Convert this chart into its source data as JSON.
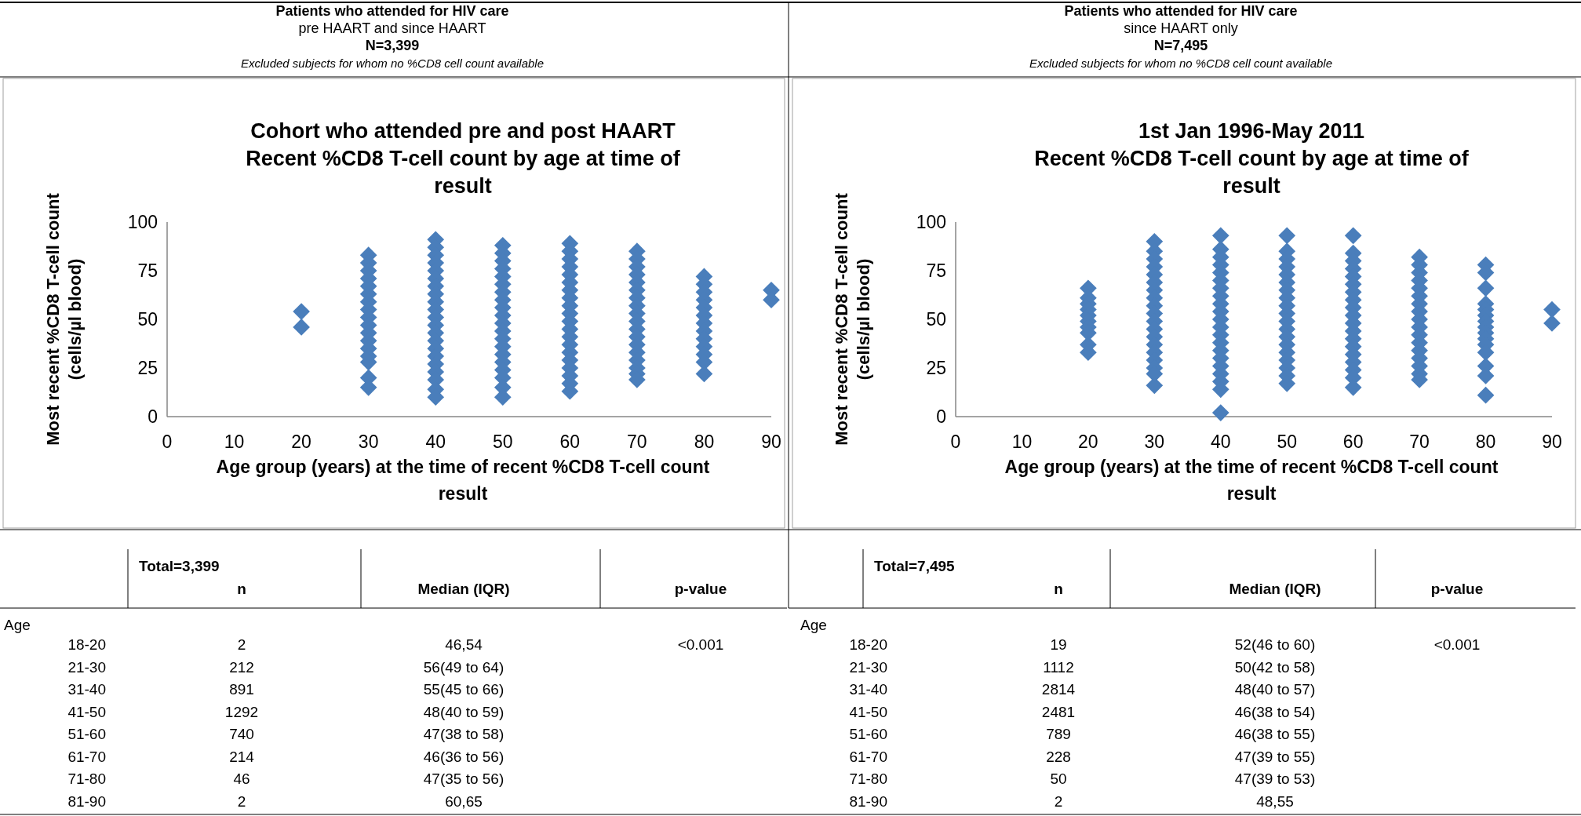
{
  "chart_data": [
    {
      "type": "scatter",
      "title": "Cohort who attended pre and post HAART",
      "subtitle": "Recent %CD8 T-cell count by age at time of result",
      "xlabel": "Age group (years) at the time of recent %CD8 T-cell count result",
      "ylabel": "Most recent %CD8 T-cell count (cells/µl blood)",
      "xlim": [
        0,
        90
      ],
      "xticks": [
        0,
        10,
        20,
        30,
        40,
        50,
        60,
        70,
        80,
        90
      ],
      "ylim": [
        0,
        100
      ],
      "yticks": [
        0,
        25,
        50,
        75,
        100
      ],
      "grid": false,
      "marker": "diamond",
      "annotations": [
        "Patients who attended for HIV care",
        "pre HAART and since HAART",
        "N=3,399",
        "Excluded subjects for whom no %CD8 cell count available"
      ],
      "series": [
        {
          "color": "#4a7ebb",
          "x": [
            20,
            20
          ],
          "values": [
            54,
            46
          ]
        },
        {
          "color": "#4a7ebb",
          "x": [
            30,
            30,
            30,
            30,
            30,
            30,
            30,
            30,
            30,
            30,
            30,
            30,
            30,
            30,
            30,
            30,
            30
          ],
          "values": [
            83,
            79,
            75,
            71,
            67,
            63,
            59,
            55,
            51,
            47,
            43,
            39,
            35,
            31,
            28,
            20,
            15
          ]
        },
        {
          "color": "#4a7ebb",
          "x": [
            40,
            40,
            40,
            40,
            40,
            40,
            40,
            40,
            40,
            40,
            40,
            40,
            40,
            40,
            40,
            40,
            40,
            40,
            40,
            40,
            40
          ],
          "values": [
            91,
            87,
            83,
            79,
            75,
            71,
            67,
            63,
            59,
            55,
            51,
            47,
            43,
            39,
            35,
            31,
            27,
            23,
            19,
            14,
            10
          ]
        },
        {
          "color": "#4a7ebb",
          "x": [
            50,
            50,
            50,
            50,
            50,
            50,
            50,
            50,
            50,
            50,
            50,
            50,
            50,
            50,
            50,
            50,
            50,
            50,
            50,
            50
          ],
          "values": [
            88,
            84,
            80,
            76,
            72,
            68,
            64,
            60,
            56,
            52,
            48,
            44,
            40,
            36,
            32,
            28,
            24,
            20,
            15,
            10
          ]
        },
        {
          "color": "#4a7ebb",
          "x": [
            60,
            60,
            60,
            60,
            60,
            60,
            60,
            60,
            60,
            60,
            60,
            60,
            60,
            60,
            60,
            60,
            60,
            60,
            60,
            60
          ],
          "values": [
            89,
            85,
            81,
            77,
            73,
            69,
            65,
            61,
            57,
            53,
            49,
            45,
            41,
            37,
            33,
            29,
            25,
            21,
            17,
            13
          ]
        },
        {
          "color": "#4a7ebb",
          "x": [
            70,
            70,
            70,
            70,
            70,
            70,
            70,
            70,
            70,
            70,
            70,
            70,
            70,
            70,
            70,
            70,
            70,
            70
          ],
          "values": [
            85,
            81,
            77,
            73,
            69,
            65,
            61,
            57,
            53,
            49,
            45,
            41,
            37,
            33,
            29,
            25,
            22,
            19
          ]
        },
        {
          "color": "#4a7ebb",
          "x": [
            80,
            80,
            80,
            80,
            80,
            80,
            80,
            80,
            80,
            80,
            80,
            80,
            80
          ],
          "values": [
            72,
            68,
            64,
            60,
            56,
            52,
            48,
            44,
            40,
            36,
            32,
            28,
            22
          ]
        },
        {
          "color": "#4a7ebb",
          "x": [
            90,
            90
          ],
          "values": [
            65,
            60
          ]
        }
      ]
    },
    {
      "type": "scatter",
      "title": "1st Jan 1996-May 2011",
      "subtitle": "Recent %CD8 T-cell count by age at time of result",
      "xlabel": "Age group (years) at the time of recent %CD8 T-cell count result",
      "ylabel": "Most recent %CD8 T-cell count (cells/µl blood)",
      "xlim": [
        0,
        90
      ],
      "xticks": [
        0,
        10,
        20,
        30,
        40,
        50,
        60,
        70,
        80,
        90
      ],
      "ylim": [
        0,
        100
      ],
      "yticks": [
        0,
        25,
        50,
        75,
        100
      ],
      "grid": false,
      "marker": "diamond",
      "annotations": [
        "Patients who attended for HIV care",
        "since HAART only",
        "N=7,495",
        "Excluded subjects for whom no %CD8 cell count available"
      ],
      "series": [
        {
          "color": "#4a7ebb",
          "x": [
            20,
            20,
            20,
            20,
            20,
            20,
            20,
            20,
            20,
            20
          ],
          "values": [
            66,
            61,
            58,
            55,
            52,
            49,
            46,
            43,
            37,
            33
          ]
        },
        {
          "color": "#4a7ebb",
          "x": [
            30,
            30,
            30,
            30,
            30,
            30,
            30,
            30,
            30,
            30,
            30,
            30,
            30,
            30,
            30,
            30,
            30,
            30,
            30
          ],
          "values": [
            90,
            85,
            81,
            77,
            73,
            69,
            65,
            61,
            57,
            53,
            49,
            45,
            41,
            37,
            33,
            29,
            25,
            22,
            16
          ]
        },
        {
          "color": "#4a7ebb",
          "x": [
            40,
            40,
            40,
            40,
            40,
            40,
            40,
            40,
            40,
            40,
            40,
            40,
            40,
            40,
            40,
            40,
            40,
            40,
            40,
            40,
            40
          ],
          "values": [
            93,
            86,
            82,
            78,
            74,
            70,
            66,
            62,
            58,
            54,
            50,
            46,
            42,
            38,
            34,
            30,
            26,
            22,
            18,
            14,
            2
          ]
        },
        {
          "color": "#4a7ebb",
          "x": [
            50,
            50,
            50,
            50,
            50,
            50,
            50,
            50,
            50,
            50,
            50,
            50,
            50,
            50,
            50,
            50,
            50,
            50,
            50
          ],
          "values": [
            93,
            85,
            81,
            77,
            73,
            69,
            65,
            61,
            57,
            53,
            49,
            45,
            41,
            37,
            33,
            29,
            25,
            21,
            17
          ]
        },
        {
          "color": "#4a7ebb",
          "x": [
            60,
            60,
            60,
            60,
            60,
            60,
            60,
            60,
            60,
            60,
            60,
            60,
            60,
            60,
            60,
            60,
            60,
            60,
            60
          ],
          "values": [
            93,
            84,
            80,
            76,
            72,
            68,
            64,
            60,
            56,
            52,
            48,
            44,
            40,
            36,
            32,
            28,
            24,
            20,
            15
          ]
        },
        {
          "color": "#4a7ebb",
          "x": [
            70,
            70,
            70,
            70,
            70,
            70,
            70,
            70,
            70,
            70,
            70,
            70,
            70,
            70,
            70,
            70,
            70
          ],
          "values": [
            82,
            78,
            74,
            70,
            66,
            62,
            58,
            54,
            50,
            46,
            42,
            38,
            34,
            30,
            26,
            22,
            19
          ]
        },
        {
          "color": "#4a7ebb",
          "x": [
            80,
            80,
            80,
            80,
            80,
            80,
            80,
            80,
            80,
            80,
            80,
            80,
            80,
            80,
            80
          ],
          "values": [
            78,
            74,
            66,
            58,
            55,
            52,
            49,
            46,
            43,
            40,
            37,
            33,
            26,
            21,
            11
          ]
        },
        {
          "color": "#4a7ebb",
          "x": [
            90,
            90
          ],
          "values": [
            55,
            48
          ]
        }
      ]
    },
    {
      "type": "other",
      "categories": [
        "18-20",
        "21-30",
        "31-40",
        "41-50",
        "51-60",
        "61-70",
        "71-80",
        "81-90"
      ],
      "annotations": [
        "Total=3,399",
        "n",
        "Median (IQR)",
        "p-value",
        "Age",
        "2",
        "212",
        "891",
        "1292",
        "740",
        "214",
        "46",
        "2",
        "46,54",
        "56(49 to 64)",
        "55(45 to 66)",
        "48(40 to 59)",
        "47(38 to 58)",
        "46(36 to 56)",
        "47(35 to 56)",
        "60,65",
        "<0.001"
      ]
    },
    {
      "type": "other",
      "categories": [
        "18-20",
        "21-30",
        "31-40",
        "41-50",
        "51-60",
        "61-70",
        "71-80",
        "81-90"
      ],
      "annotations": [
        "Total=7,495",
        "n",
        "Median (IQR)",
        "p-value",
        "Age",
        "19",
        "1112",
        "2814",
        "2481",
        "789",
        "228",
        "50",
        "2",
        "52(46 to 60)",
        "50(42 to 58)",
        "48(40 to 57)",
        "46(38 to 54)",
        "46(38 to 55)",
        "47(39 to 55)",
        "47(39 to 53)",
        "48,55",
        "<0.001"
      ]
    }
  ]
}
